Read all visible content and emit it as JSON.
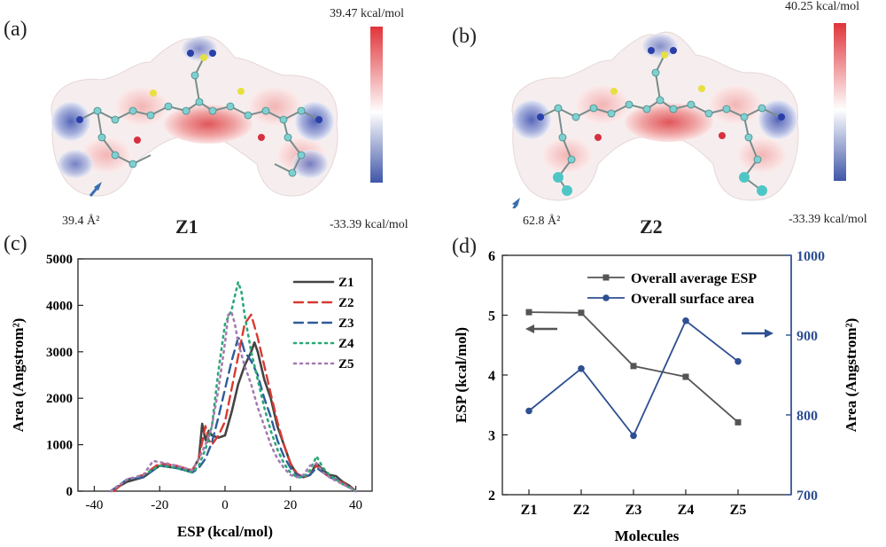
{
  "panels": {
    "a": {
      "label": "(a)",
      "molecule": "Z1",
      "area_note": "39.4 Å²",
      "scale_max": "39.47 kcal/mol",
      "scale_min": "-33.39 kcal/mol"
    },
    "b": {
      "label": "(b)",
      "molecule": "Z2",
      "area_note": "62.8 Å²",
      "scale_max": "40.25 kcal/mol",
      "scale_min": "-33.39 kcal/mol"
    },
    "c": {
      "label": "(c)"
    },
    "d": {
      "label": "(d)"
    }
  },
  "colors": {
    "positive": "#e0343a",
    "negative": "#3f56a8",
    "neutral": "#ffffff",
    "z1": "#444444",
    "z2": "#d83a34",
    "z3": "#2f5d9a",
    "z4": "#2aa876",
    "z5": "#a67ab0",
    "esp_line": "#555555",
    "area_line": "#2e4f91"
  },
  "chart_data": [
    {
      "type": "line",
      "panel": "(c)",
      "xlabel": "ESP (kcal/mol)",
      "ylabel": "Area (Angstrom²)",
      "xlim": [
        -45,
        45
      ],
      "ylim": [
        0,
        5000
      ],
      "xticks": [
        -40,
        -20,
        0,
        20,
        40
      ],
      "yticks": [
        0,
        1000,
        2000,
        3000,
        4000,
        5000
      ],
      "legend_position": "top-right",
      "series": [
        {
          "name": "Z1",
          "style": "solid",
          "x": [
            -35,
            -30,
            -25,
            -20,
            -15,
            -10,
            -8,
            -7,
            -6,
            -5,
            -4,
            -2,
            0,
            2,
            4,
            6,
            8,
            9,
            10,
            12,
            14,
            16,
            18,
            20,
            22,
            24,
            26,
            28,
            30,
            32,
            34,
            36,
            38,
            40
          ],
          "y": [
            0,
            200,
            300,
            550,
            500,
            450,
            700,
            1450,
            1100,
            1300,
            1200,
            1150,
            1200,
            1700,
            2300,
            2700,
            3000,
            3200,
            3000,
            2400,
            2000,
            1400,
            1000,
            600,
            350,
            300,
            350,
            600,
            450,
            350,
            320,
            200,
            120,
            0
          ]
        },
        {
          "name": "Z2",
          "style": "dash",
          "x": [
            -34,
            -30,
            -25,
            -20,
            -15,
            -10,
            -8,
            -6,
            -5,
            -4,
            -2,
            0,
            2,
            4,
            6,
            8,
            10,
            12,
            14,
            16,
            18,
            20,
            22,
            24,
            26,
            28,
            30,
            32,
            34,
            36,
            38,
            40
          ],
          "y": [
            0,
            250,
            350,
            600,
            550,
            450,
            700,
            1400,
            1100,
            1000,
            1200,
            1500,
            2200,
            2900,
            3600,
            3800,
            3300,
            2700,
            2100,
            1500,
            1000,
            600,
            380,
            300,
            350,
            550,
            400,
            300,
            250,
            180,
            100,
            0
          ]
        },
        {
          "name": "Z3",
          "style": "dash",
          "x": [
            -35,
            -30,
            -25,
            -20,
            -15,
            -10,
            -8,
            -6,
            -4,
            -2,
            0,
            2,
            4,
            5,
            6,
            8,
            10,
            12,
            14,
            16,
            18,
            20,
            22,
            24,
            26,
            28,
            30,
            32,
            34,
            36,
            38,
            40
          ],
          "y": [
            0,
            250,
            300,
            550,
            500,
            400,
            500,
            700,
            1050,
            1600,
            2200,
            2800,
            3300,
            3250,
            3000,
            2800,
            2500,
            2000,
            1600,
            1100,
            750,
            500,
            350,
            300,
            350,
            500,
            400,
            300,
            250,
            150,
            80,
            0
          ]
        },
        {
          "name": "Z4",
          "style": "dot",
          "x": [
            -35,
            -30,
            -25,
            -20,
            -15,
            -10,
            -8,
            -6,
            -4,
            -2,
            0,
            2,
            4,
            5,
            6,
            8,
            10,
            12,
            14,
            16,
            18,
            20,
            22,
            24,
            26,
            28,
            30,
            32,
            34,
            36,
            38,
            40
          ],
          "y": [
            0,
            250,
            350,
            550,
            500,
            400,
            550,
            900,
            1400,
            2600,
            3600,
            3900,
            4500,
            4300,
            3800,
            3000,
            2400,
            1800,
            1300,
            900,
            600,
            400,
            300,
            300,
            450,
            750,
            500,
            350,
            250,
            150,
            80,
            0
          ]
        },
        {
          "name": "Z5",
          "style": "dot",
          "x": [
            -35,
            -30,
            -25,
            -22,
            -18,
            -15,
            -10,
            -8,
            -6,
            -4,
            -2,
            0,
            1,
            2,
            3,
            4,
            6,
            8,
            10,
            12,
            14,
            16,
            18,
            20,
            22,
            24,
            26,
            28,
            30,
            32,
            34,
            36,
            38,
            40
          ],
          "y": [
            0,
            250,
            350,
            650,
            600,
            550,
            450,
            700,
            1000,
            1400,
            2200,
            3200,
            3800,
            3850,
            3600,
            3200,
            2700,
            2300,
            1800,
            1400,
            1000,
            700,
            500,
            350,
            300,
            350,
            550,
            600,
            400,
            300,
            220,
            150,
            80,
            0
          ]
        }
      ]
    },
    {
      "type": "line",
      "panel": "(d)",
      "xlabel": "Molecules",
      "ylabel": "ESP (kcal/mol)",
      "y2label": "Area (Angstrom²)",
      "categories": [
        "Z1",
        "Z2",
        "Z3",
        "Z4",
        "Z5"
      ],
      "ylim": [
        2,
        6
      ],
      "yticks": [
        2,
        3,
        4,
        5,
        6
      ],
      "y2lim": [
        700,
        1000
      ],
      "y2ticks": [
        700,
        800,
        900,
        1000
      ],
      "legend_position": "top-right",
      "series": [
        {
          "name": "Overall average ESP",
          "axis": "left",
          "marker": "square",
          "values": [
            5.05,
            5.04,
            4.15,
            3.97,
            3.21
          ]
        },
        {
          "name": "Overall surface area",
          "axis": "right",
          "marker": "circle",
          "values": [
            805,
            858,
            774,
            918,
            867
          ]
        }
      ]
    }
  ]
}
